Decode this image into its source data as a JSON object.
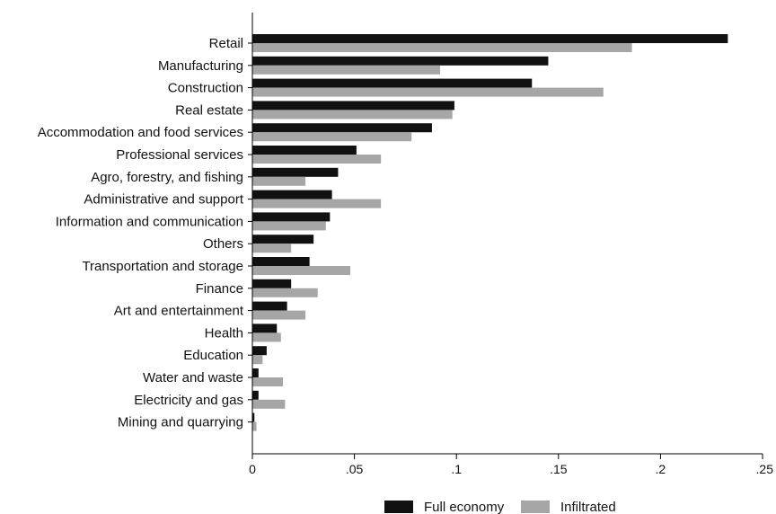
{
  "chart_data": {
    "type": "bar",
    "orientation": "horizontal",
    "categories": [
      "Retail",
      "Manufacturing",
      "Construction",
      "Real estate",
      "Accommodation and food services",
      "Professional services",
      "Agro, forestry, and fishing",
      "Administrative and support",
      "Information and communication",
      "Others",
      "Transportation and storage",
      "Finance",
      "Art and entertainment",
      "Health",
      "Education",
      "Water and waste",
      "Electricity and gas",
      "Mining and quarrying"
    ],
    "series": [
      {
        "name": "Full economy",
        "color": "#111111",
        "values": [
          0.233,
          0.145,
          0.137,
          0.099,
          0.088,
          0.051,
          0.042,
          0.039,
          0.038,
          0.03,
          0.028,
          0.019,
          0.017,
          0.012,
          0.007,
          0.003,
          0.003,
          0.001
        ]
      },
      {
        "name": "Infiltrated",
        "color": "#a6a6a6",
        "values": [
          0.186,
          0.092,
          0.172,
          0.098,
          0.078,
          0.063,
          0.026,
          0.063,
          0.036,
          0.019,
          0.048,
          0.032,
          0.026,
          0.014,
          0.005,
          0.015,
          0.016,
          0.002
        ]
      }
    ],
    "xticks": [
      0,
      0.05,
      0.1,
      0.15,
      0.2,
      0.25
    ],
    "xtick_labels": [
      "0",
      ".05",
      ".1",
      ".15",
      ".2",
      ".25"
    ],
    "xlim": [
      0,
      0.25
    ],
    "title": "",
    "xlabel": "",
    "ylabel": "",
    "grid": false,
    "legend_position": "bottom"
  }
}
